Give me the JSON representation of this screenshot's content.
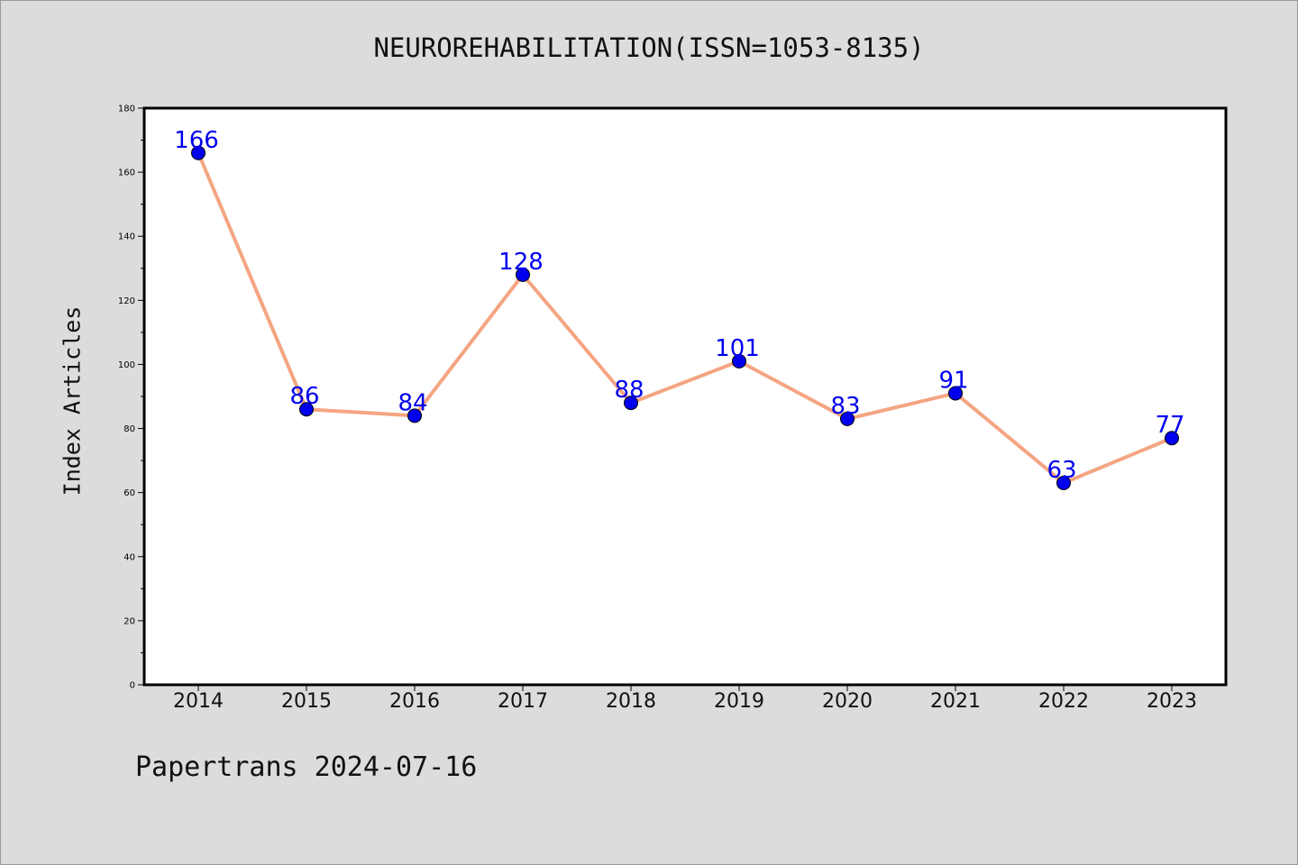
{
  "figure": {
    "footer": "Papertrans 2024-07-16"
  },
  "chart_data": {
    "type": "line",
    "title": "NEUROREHABILITATION(ISSN=1053-8135)",
    "xlabel": "",
    "ylabel": "Index Articles",
    "categories": [
      "2014",
      "2015",
      "2016",
      "2017",
      "2018",
      "2019",
      "2020",
      "2021",
      "2022",
      "2023"
    ],
    "series": [
      {
        "values": [
          166,
          86,
          84,
          128,
          88,
          101,
          83,
          91,
          63,
          77
        ]
      }
    ],
    "ylim": [
      0,
      180
    ],
    "yticks": [
      0,
      20,
      40,
      60,
      80,
      100,
      120,
      140,
      160,
      180
    ],
    "line_color": "#f4a582",
    "marker_color": "#0000ee",
    "label_color": "#0000ee",
    "data_labels": true,
    "grid": false,
    "legend": "none"
  }
}
